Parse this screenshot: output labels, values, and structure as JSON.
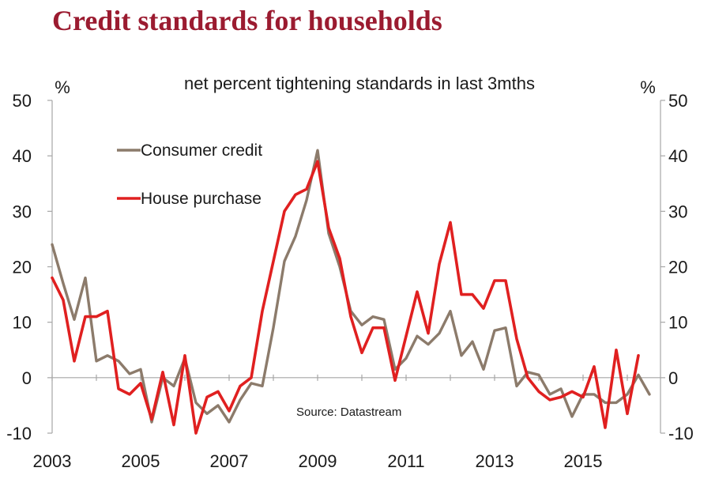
{
  "title": "Credit standards for households",
  "colors": {
    "title": "#9b1b30",
    "axis": "#a6a6a6",
    "text": "#1a1a1a",
    "consumer_credit": "#8c7b6b",
    "house_purchase": "#e02020"
  },
  "chart_data": {
    "type": "line",
    "title": "net percent tightening standards in last 3mths",
    "ylabel_left": "%",
    "ylabel_right": "%",
    "ylim": [
      -10,
      50
    ],
    "yticks": [
      50,
      40,
      30,
      20,
      10,
      0,
      -10
    ],
    "xlim": [
      2003,
      2016.75
    ],
    "xticks": [
      2003,
      2005,
      2007,
      2009,
      2011,
      2013,
      2015
    ],
    "x_start": 2003.0,
    "x_step": 0.25,
    "source": "Source: Datastream",
    "legend": [
      "Consumer credit",
      "House purchase"
    ],
    "series": [
      {
        "name": "Consumer credit",
        "color": "#8c7b6b",
        "values": [
          24,
          17,
          10.5,
          18,
          3,
          4,
          3,
          0.7,
          1.5,
          -8,
          0,
          -1.5,
          3.5,
          -4.5,
          -6.5,
          -5,
          -8,
          -4,
          -1,
          -1.5,
          9,
          21,
          25.5,
          32,
          41,
          26,
          20,
          12,
          9.5,
          11,
          10.5,
          1.5,
          3.5,
          7.5,
          6,
          8,
          12,
          4,
          6.5,
          1.5,
          8.5,
          9,
          -1.5,
          1,
          0.5,
          -3,
          -2,
          -7,
          -3,
          -3,
          -4.5,
          -4.5,
          -3,
          0.5,
          -3
        ]
      },
      {
        "name": "House purchase",
        "color": "#e02020",
        "values": [
          18,
          14,
          3,
          11,
          11,
          12,
          -2,
          -3,
          -1,
          -7.5,
          1,
          -8.5,
          4,
          -10,
          -3.5,
          -2.5,
          -6,
          -1.5,
          0,
          12,
          21,
          30,
          33,
          34,
          39,
          27,
          21.5,
          11,
          4.5,
          9,
          9,
          -0.5,
          7.5,
          15.5,
          8,
          20.5,
          28,
          15,
          15,
          12.5,
          17.5,
          17.5,
          7,
          0,
          -2.5,
          -4,
          -3.5,
          -2.5,
          -3.5,
          2,
          -9,
          5,
          -6.5,
          4
        ]
      }
    ]
  }
}
